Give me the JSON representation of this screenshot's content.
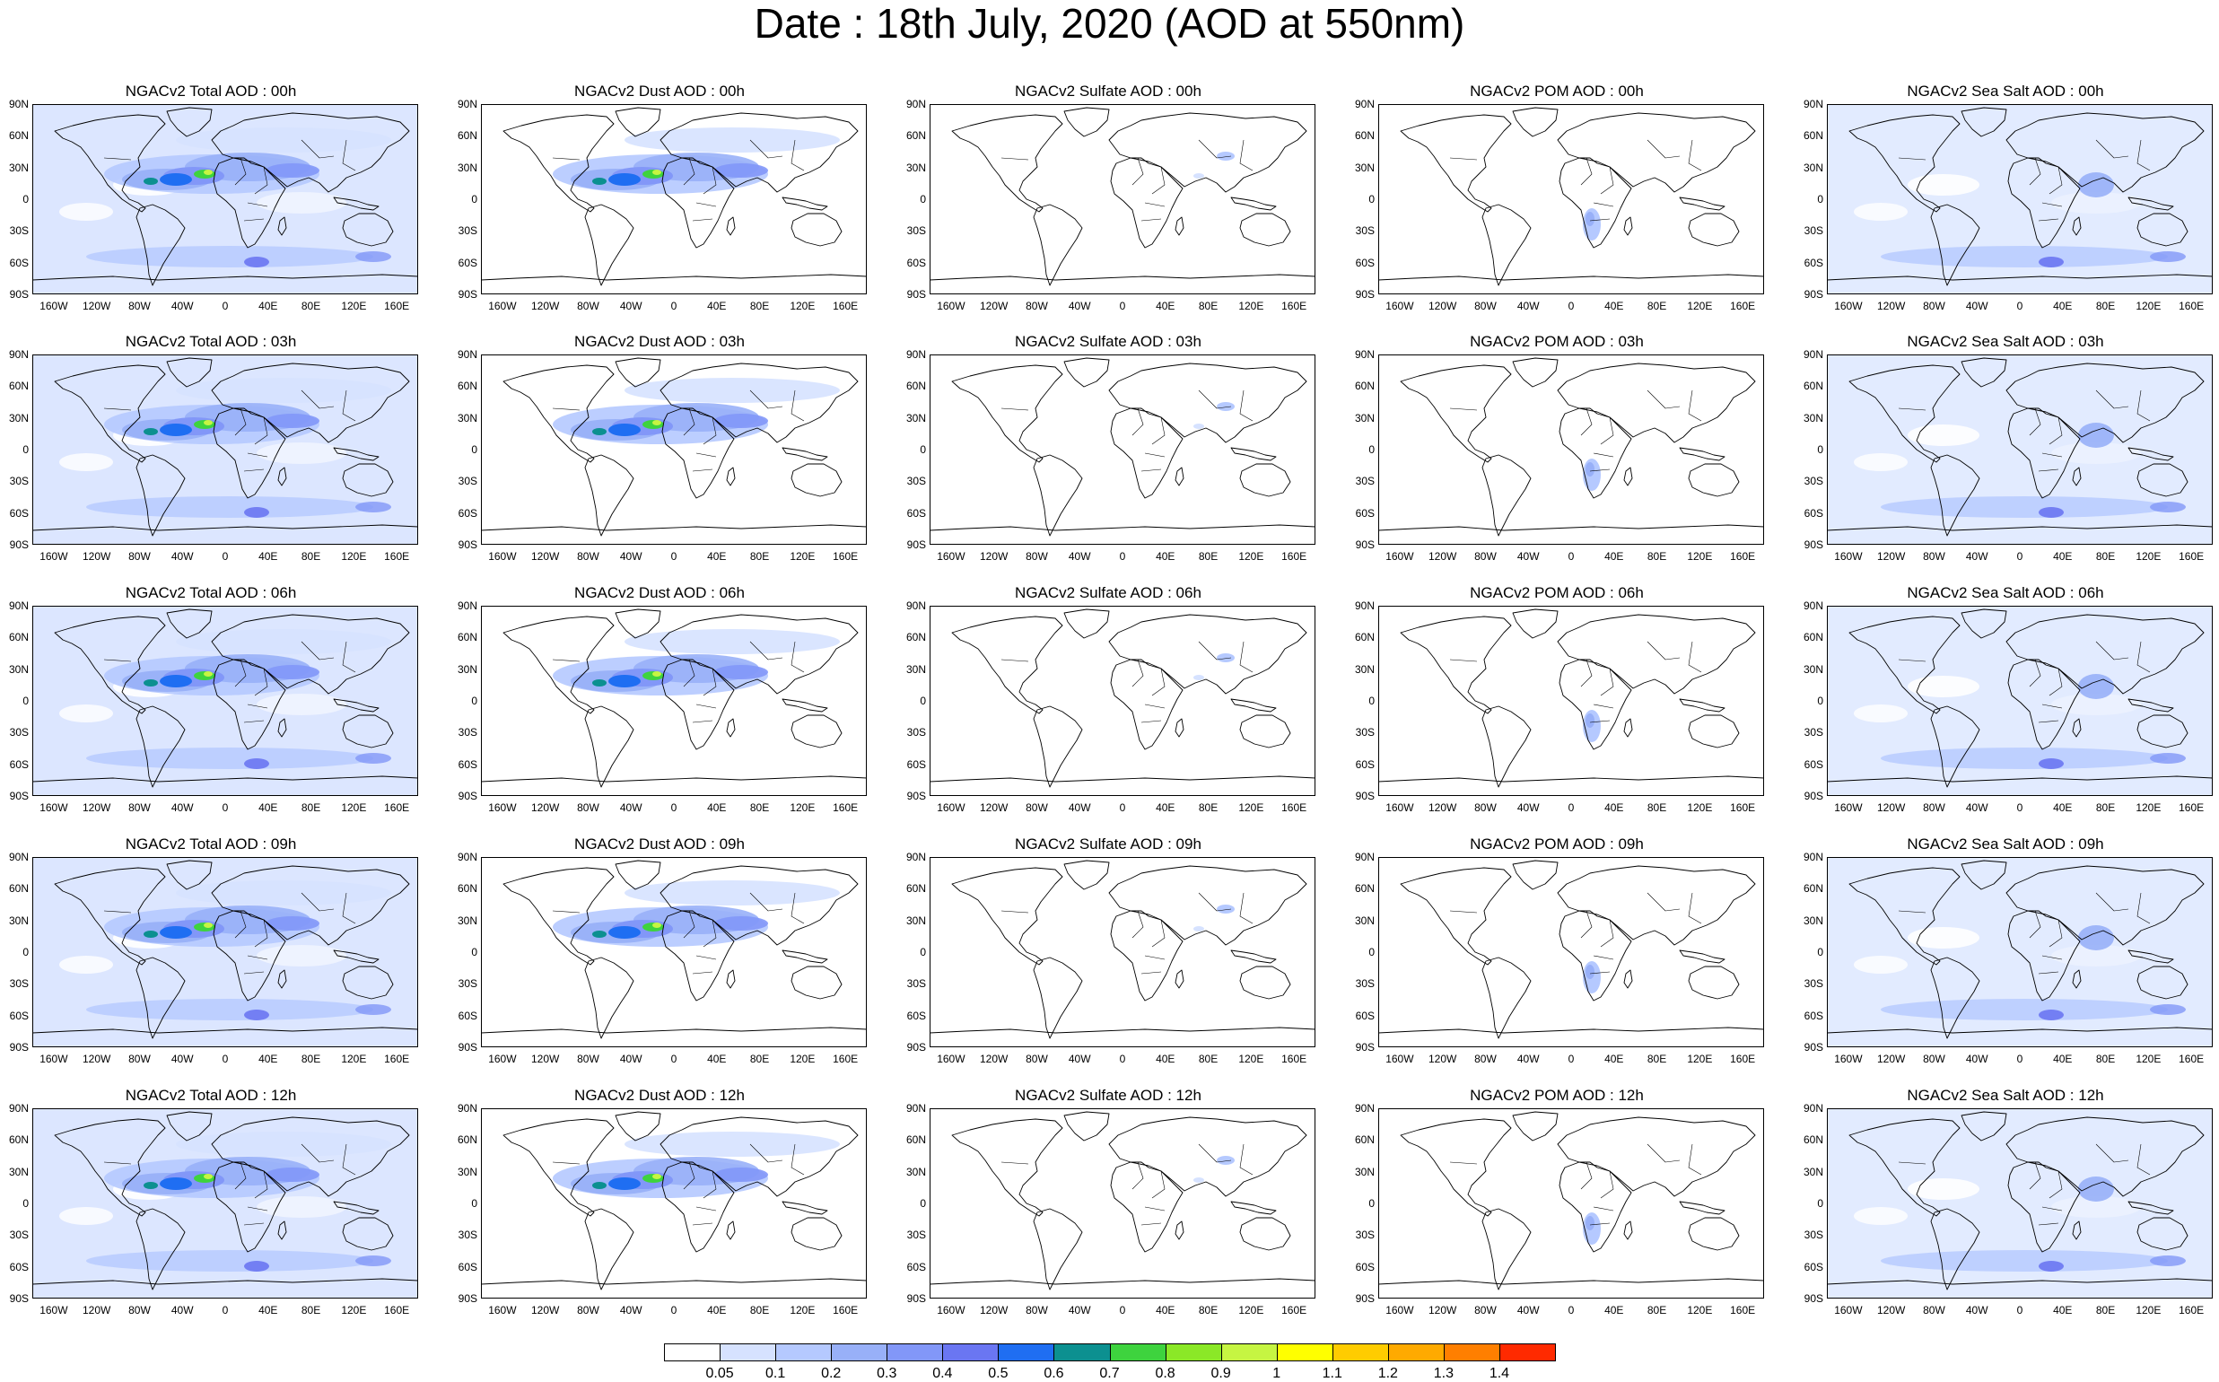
{
  "title": "Date : 18th July, 2020 (AOD at 550nm)",
  "panels": [
    [
      "NGACv2 Total AOD : 00h",
      "NGACv2 Dust AOD : 00h",
      "NGACv2 Sulfate AOD : 00h",
      "NGACv2 POM AOD : 00h",
      "NGACv2 Sea Salt AOD : 00h"
    ],
    [
      "NGACv2 Total AOD : 03h",
      "NGACv2 Dust AOD : 03h",
      "NGACv2 Sulfate AOD : 03h",
      "NGACv2 POM AOD : 03h",
      "NGACv2 Sea Salt AOD : 03h"
    ],
    [
      "NGACv2 Total AOD : 06h",
      "NGACv2 Dust AOD : 06h",
      "NGACv2 Sulfate AOD : 06h",
      "NGACv2 POM AOD : 06h",
      "NGACv2 Sea Salt AOD : 06h"
    ],
    [
      "NGACv2 Total AOD : 09h",
      "NGACv2 Dust AOD : 09h",
      "NGACv2 Sulfate AOD : 09h",
      "NGACv2 POM AOD : 09h",
      "NGACv2 Sea Salt  AOD : 09h"
    ],
    [
      "NGACv2 Total AOD  : 12h",
      "NGACv2 Dust AOD : 12h",
      "NGACv2 Sulfate AOD : 12h",
      "NGACv2 POM  AOD : 12h",
      "NGACv2 Sea Salt AOD : 12h"
    ]
  ],
  "lat_labels": [
    "90N",
    "60N",
    "30N",
    "0",
    "30S",
    "60S",
    "90S"
  ],
  "lon_labels": [
    "160W",
    "120W",
    "80W",
    "40W",
    "0",
    "40E",
    "80E",
    "120E",
    "160E"
  ],
  "colorbar": {
    "labels": [
      "0.05",
      "0.1",
      "0.2",
      "0.3",
      "0.4",
      "0.5",
      "0.6",
      "0.7",
      "0.8",
      "0.9",
      "1",
      "1.1",
      "1.2",
      "1.3",
      "1.4"
    ],
    "colors": [
      "#ffffff",
      "#d6e2ff",
      "#b5c9ff",
      "#98b0f8",
      "#8297f8",
      "#6a76f2",
      "#1f6ef2",
      "#0c9090",
      "#3ed33e",
      "#8be827",
      "#c6f542",
      "#ffff00",
      "#ffcc00",
      "#ffaa00",
      "#ff7f00",
      "#ff2a00"
    ]
  }
}
